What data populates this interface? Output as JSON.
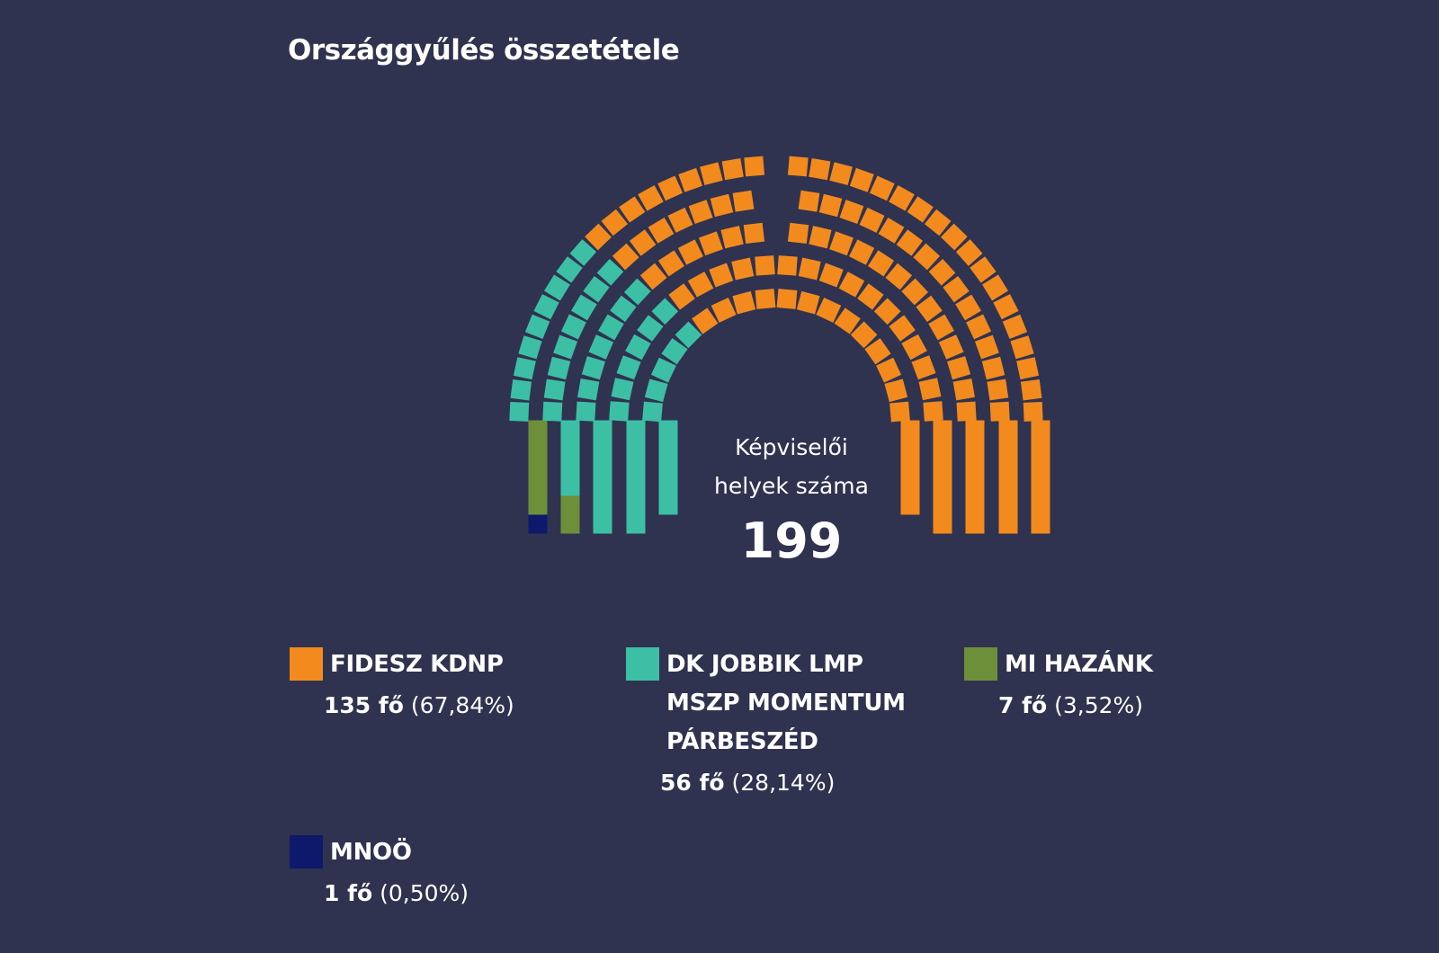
{
  "title": "Országgyűlés összetétele",
  "center": {
    "label_line1": "Képviselői",
    "label_line2": "helyek száma",
    "total": "199"
  },
  "chart_data": {
    "type": "parliament",
    "title": "Országgyűlés összetétele",
    "total": 199,
    "series": [
      {
        "name": "FIDESZ  KDNP",
        "seats": 135,
        "percent": "67,84%",
        "color": "#f28a1e"
      },
      {
        "name": "DK  JOBBIK  LMP\nMSZP  MOMENTUM\nPÁRBESZÉD",
        "seats": 56,
        "percent": "28,14%",
        "color": "#3dbfa5"
      },
      {
        "name": "MI HAZÁNK",
        "seats": 7,
        "percent": "3,52%",
        "color": "#6e8f3a"
      },
      {
        "name": "MNOÖ",
        "seats": 1,
        "percent": "0,50%",
        "color": "#0d1a6b"
      }
    ]
  },
  "legend": [
    {
      "name": "FIDESZ  KDNP",
      "count": "135 fő",
      "percent": "(67,84%)",
      "color": "#f28a1e"
    },
    {
      "name": "DK  JOBBIK  LMP\nMSZP  MOMENTUM\nPÁRBESZÉD",
      "count": "56 fő",
      "percent": "(28,14%)",
      "color": "#3dbfa5"
    },
    {
      "name": "MI HAZÁNK",
      "count": "7 fő",
      "percent": "(3,52%)",
      "color": "#6e8f3a"
    },
    {
      "name": "MNOÖ",
      "count": "1 fő",
      "percent": "(0,50%)",
      "color": "#0d1a6b"
    }
  ]
}
